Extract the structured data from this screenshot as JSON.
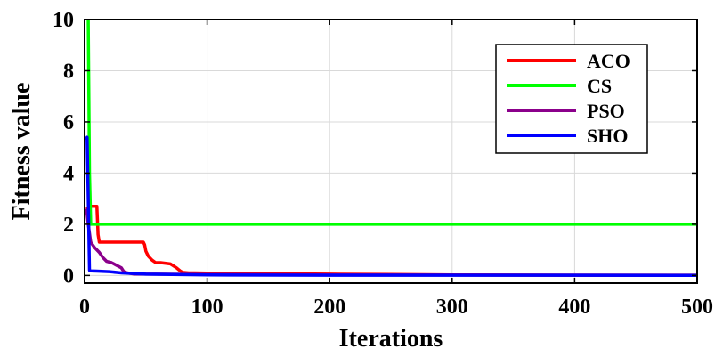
{
  "chart_data": {
    "type": "line",
    "title": "",
    "xlabel": "Iterations",
    "ylabel": "Fitness value",
    "xlim": [
      0,
      500
    ],
    "ylim": [
      -0.3,
      10
    ],
    "xticks": [
      0,
      100,
      200,
      300,
      400,
      500
    ],
    "yticks": [
      0,
      2,
      4,
      6,
      8,
      10
    ],
    "xtick_labels": [
      "0",
      "100",
      "200",
      "300",
      "400",
      "500"
    ],
    "ytick_labels": [
      "0",
      "2",
      "4",
      "6",
      "8",
      "10"
    ],
    "grid": true,
    "legend_position": "top-right",
    "series": [
      {
        "name": "ACO",
        "color": "#ff0000",
        "x": [
          1,
          3,
          4,
          8,
          10,
          11,
          12,
          48,
          49,
          50,
          52,
          55,
          58,
          60,
          62,
          70,
          75,
          78,
          80,
          85,
          90,
          100,
          150,
          200,
          250,
          300,
          400,
          500
        ],
        "y": [
          2.6,
          2.6,
          2.7,
          2.7,
          2.7,
          1.6,
          1.3,
          1.3,
          1.2,
          0.95,
          0.75,
          0.6,
          0.5,
          0.5,
          0.5,
          0.45,
          0.3,
          0.18,
          0.12,
          0.1,
          0.1,
          0.09,
          0.07,
          0.05,
          0.04,
          0.02,
          0.01,
          0.01
        ]
      },
      {
        "name": "CS",
        "color": "#00ff00",
        "x": [
          2,
          3,
          4,
          5,
          500
        ],
        "y": [
          10,
          10,
          4,
          2,
          2
        ]
      },
      {
        "name": "PSO",
        "color": "#8b008b",
        "x": [
          1,
          2,
          3,
          5,
          8,
          12,
          15,
          18,
          22,
          26,
          30,
          32,
          35,
          40,
          60,
          100,
          200,
          500
        ],
        "y": [
          2.6,
          2.4,
          2.0,
          1.3,
          1.1,
          0.9,
          0.7,
          0.55,
          0.5,
          0.4,
          0.3,
          0.15,
          0.1,
          0.06,
          0.05,
          0.04,
          0.02,
          0.01
        ]
      },
      {
        "name": "SHO",
        "color": "#0000ff",
        "x": [
          1,
          2,
          3,
          4,
          5,
          10,
          20,
          30,
          50,
          100,
          200,
          500
        ],
        "y": [
          5.3,
          5.4,
          3.0,
          0.2,
          0.18,
          0.17,
          0.15,
          0.1,
          0.05,
          0.02,
          0.01,
          0.005
        ]
      }
    ]
  }
}
